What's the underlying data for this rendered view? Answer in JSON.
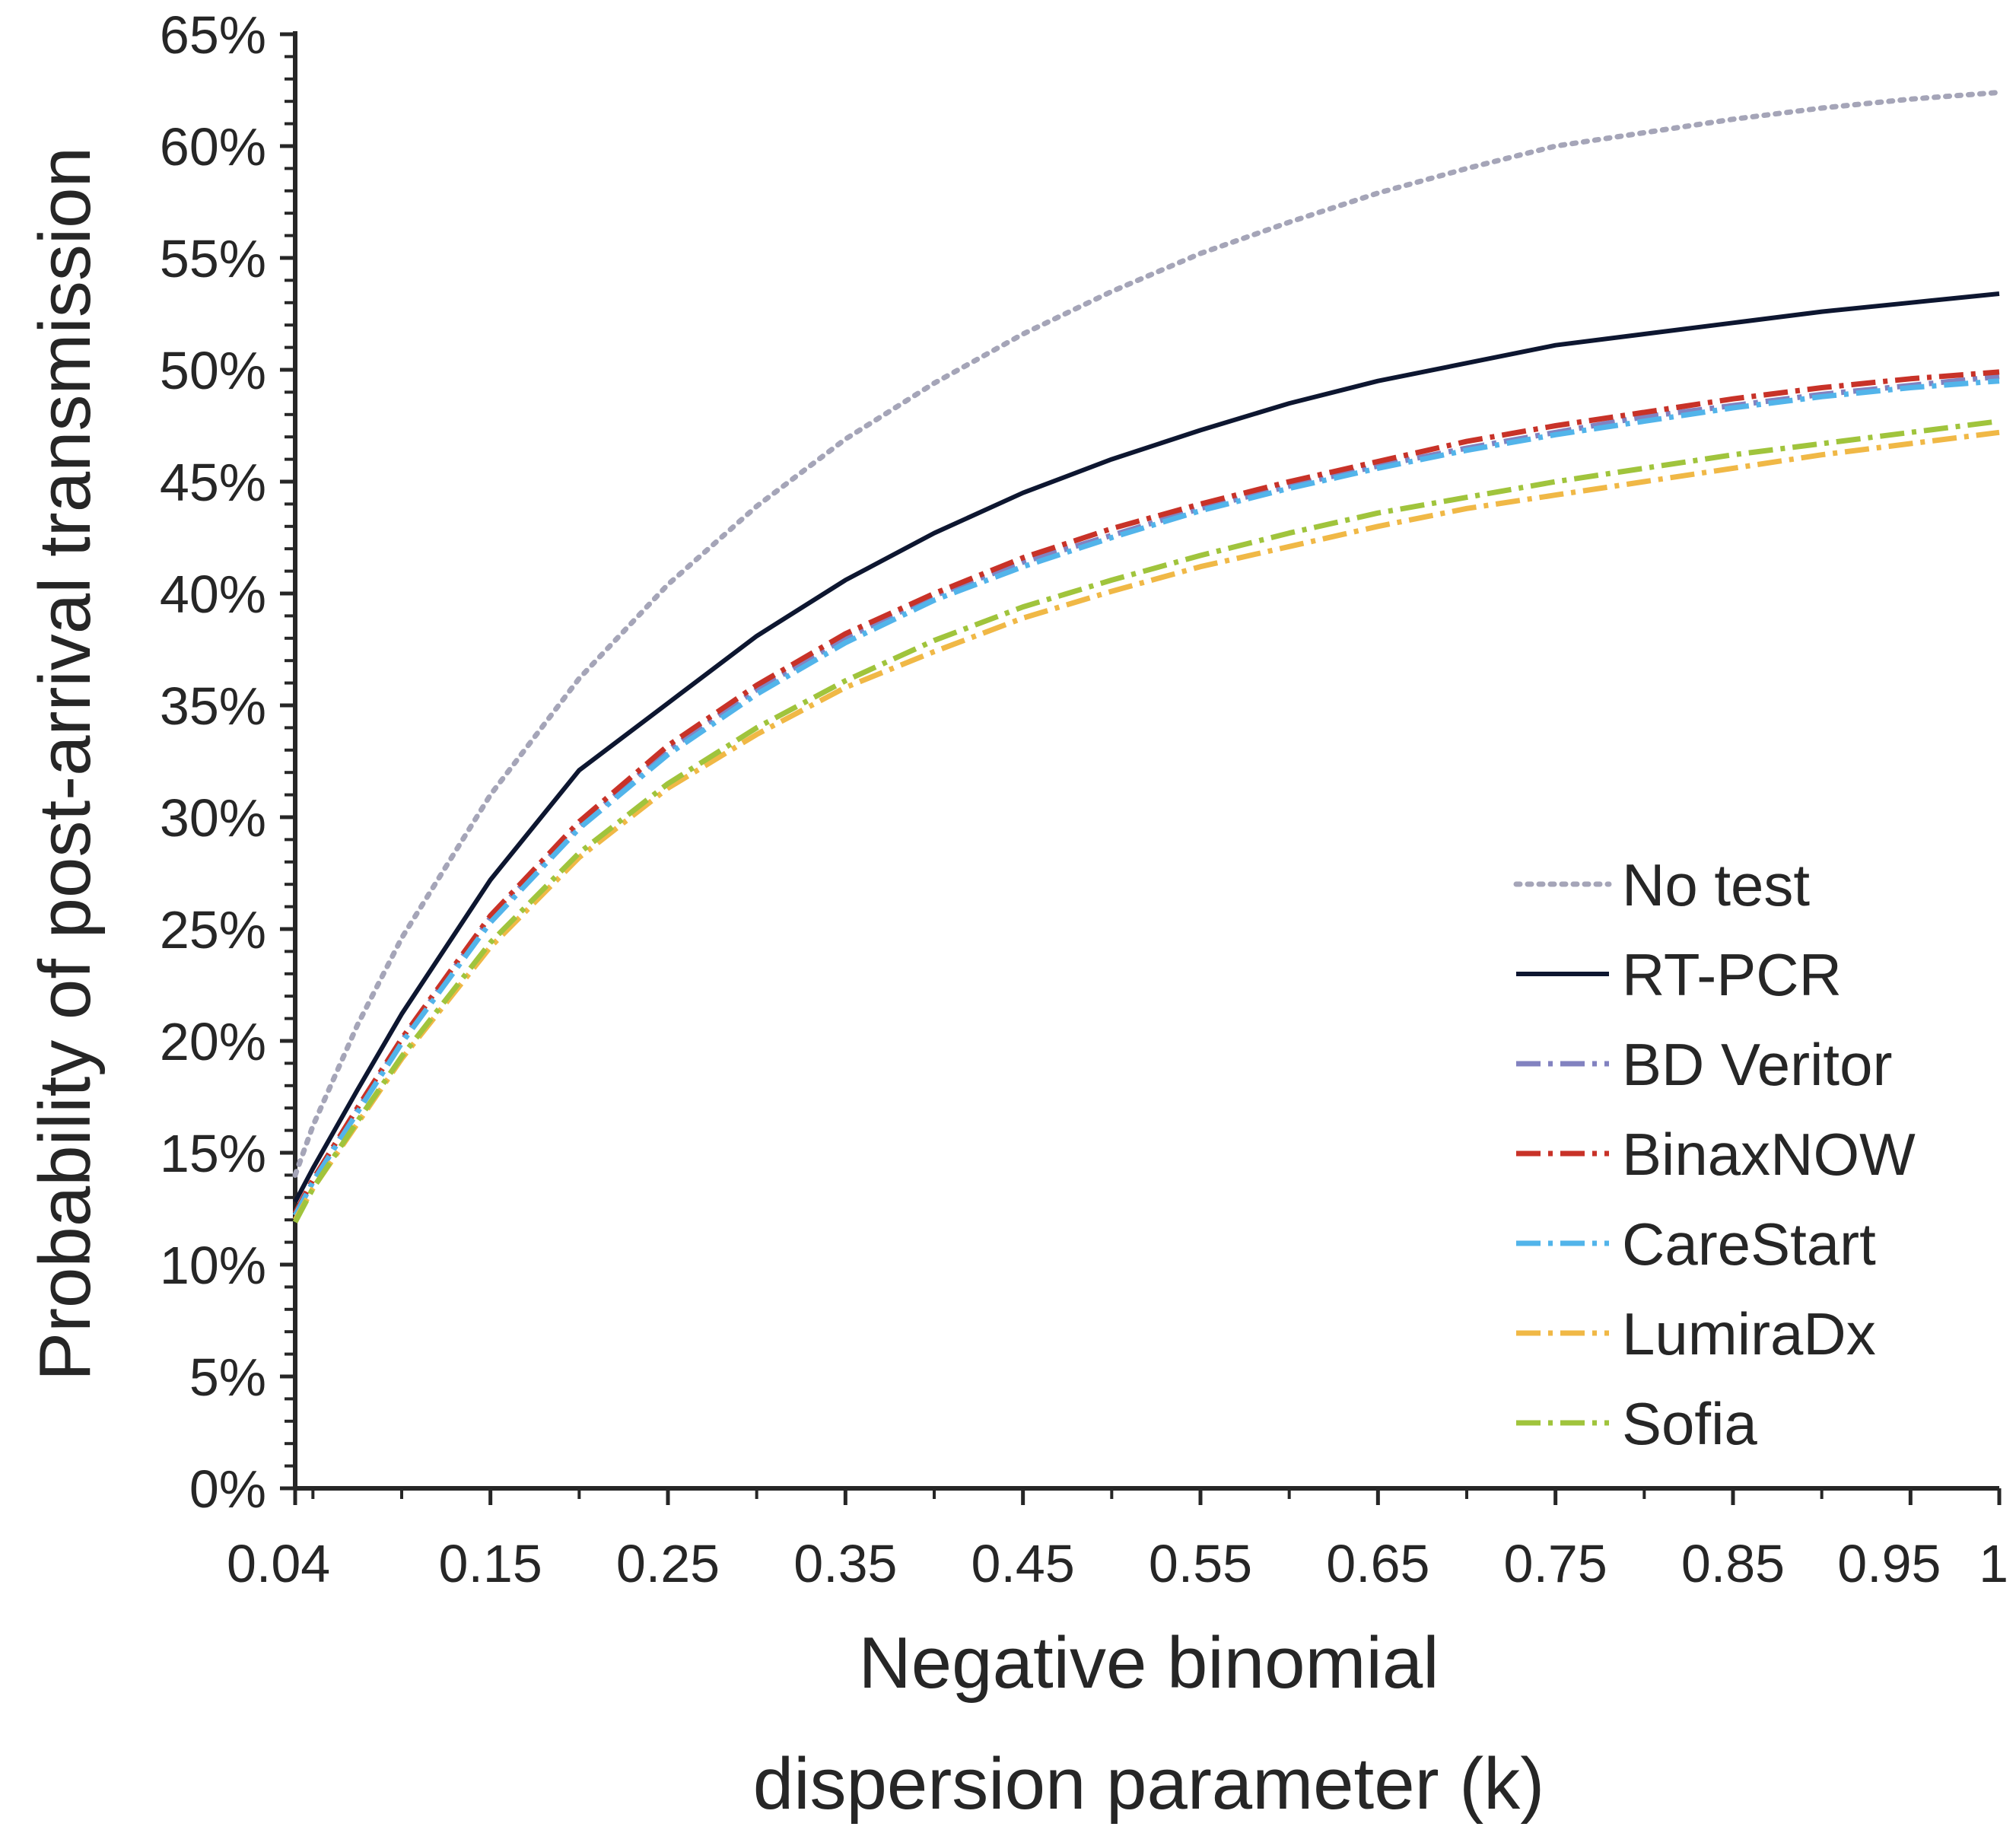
{
  "chart_data": {
    "type": "line",
    "title": "",
    "xlabel_lines": [
      "Negative binomial",
      "dispersion parameter (k)"
    ],
    "ylabel": "Probability of post-arrival transmission",
    "x_scale": "linear",
    "xlim": [
      0.04,
      1.0
    ],
    "ylim": [
      0,
      0.65
    ],
    "x_tick_values": [
      0.04,
      0.15,
      0.25,
      0.35,
      0.45,
      0.55,
      0.65,
      0.75,
      0.85,
      0.95,
      1.0
    ],
    "x_tick_labels": [
      "0.04",
      "0.15",
      "0.25",
      "0.35",
      "0.45",
      "0.55",
      "0.65",
      "0.75",
      "0.85",
      "0.95",
      "1"
    ],
    "y_tick_values": [
      0,
      0.05,
      0.1,
      0.15,
      0.2,
      0.25,
      0.3,
      0.35,
      0.4,
      0.45,
      0.5,
      0.55,
      0.6,
      0.65
    ],
    "y_tick_labels": [
      "0%",
      "5%",
      "10%",
      "15%",
      "20%",
      "25%",
      "30%",
      "35%",
      "40%",
      "45%",
      "50%",
      "55%",
      "60%",
      "65%"
    ],
    "grid": false,
    "legend_position": "lower-right",
    "x": [
      0.04,
      0.05,
      0.075,
      0.1,
      0.15,
      0.2,
      0.25,
      0.3,
      0.35,
      0.4,
      0.45,
      0.5,
      0.55,
      0.6,
      0.65,
      0.7,
      0.75,
      0.8,
      0.85,
      0.9,
      0.95,
      1.0
    ],
    "series": [
      {
        "name": "No test",
        "color": "#a5a5b8",
        "dash": "dotted",
        "values": [
          0.14,
          0.162,
          0.207,
          0.246,
          0.31,
          0.362,
          0.404,
          0.439,
          0.469,
          0.494,
          0.516,
          0.535,
          0.552,
          0.566,
          0.579,
          0.59,
          0.6,
          0.606,
          0.612,
          0.617,
          0.621,
          0.624
        ]
      },
      {
        "name": "RT-PCR",
        "color": "#0d1630",
        "dash": "solid",
        "values": [
          0.128,
          0.143,
          0.178,
          0.212,
          0.272,
          0.321,
          0.351,
          0.381,
          0.406,
          0.427,
          0.445,
          0.46,
          0.473,
          0.485,
          0.495,
          0.503,
          0.511,
          0.516,
          0.521,
          0.526,
          0.53,
          0.534
        ]
      },
      {
        "name": "BD Veritor",
        "color": "#8282c0",
        "dash": "dashdot",
        "values": [
          0.122,
          0.137,
          0.169,
          0.2,
          0.255,
          0.296,
          0.33,
          0.357,
          0.38,
          0.399,
          0.414,
          0.426,
          0.438,
          0.448,
          0.457,
          0.465,
          0.472,
          0.479,
          0.484,
          0.489,
          0.493,
          0.497
        ]
      },
      {
        "name": "BinaxNOW",
        "color": "#c83228",
        "dash": "dashdot",
        "values": [
          0.123,
          0.138,
          0.17,
          0.201,
          0.256,
          0.298,
          0.332,
          0.359,
          0.382,
          0.4,
          0.416,
          0.429,
          0.44,
          0.45,
          0.459,
          0.468,
          0.475,
          0.481,
          0.487,
          0.492,
          0.496,
          0.499
        ]
      },
      {
        "name": "CareStart",
        "color": "#52b4ea",
        "dash": "dashdot",
        "values": [
          0.122,
          0.137,
          0.168,
          0.199,
          0.253,
          0.295,
          0.328,
          0.355,
          0.378,
          0.397,
          0.412,
          0.425,
          0.437,
          0.447,
          0.456,
          0.464,
          0.471,
          0.477,
          0.483,
          0.488,
          0.492,
          0.495
        ]
      },
      {
        "name": "LumiraDx",
        "color": "#f0b846",
        "dash": "dashdot",
        "values": [
          0.12,
          0.134,
          0.163,
          0.192,
          0.242,
          0.282,
          0.313,
          0.337,
          0.358,
          0.374,
          0.389,
          0.401,
          0.412,
          0.421,
          0.43,
          0.438,
          0.444,
          0.45,
          0.456,
          0.462,
          0.467,
          0.472
        ]
      },
      {
        "name": "Sofia",
        "color": "#a0c43c",
        "dash": "dashdot",
        "values": [
          0.119,
          0.134,
          0.164,
          0.193,
          0.244,
          0.284,
          0.315,
          0.34,
          0.361,
          0.379,
          0.394,
          0.406,
          0.417,
          0.427,
          0.436,
          0.443,
          0.45,
          0.456,
          0.462,
          0.467,
          0.472,
          0.477
        ]
      }
    ]
  }
}
